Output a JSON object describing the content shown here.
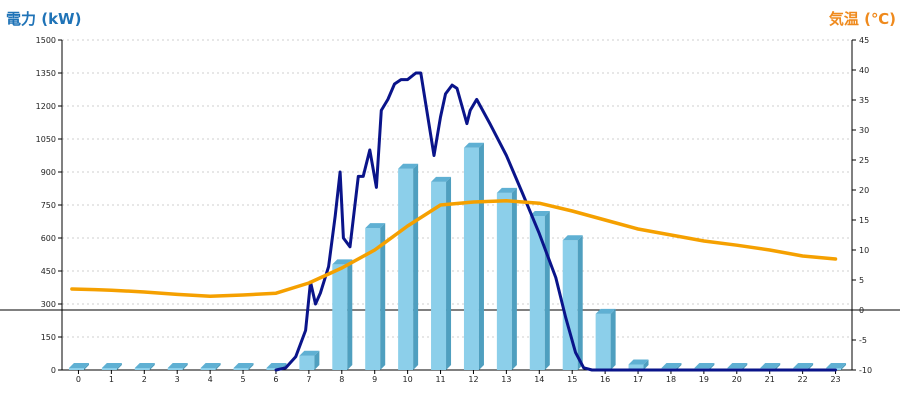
{
  "chart_data": {
    "type": "bar+line",
    "title_left": "電力 (kW)",
    "title_right": "気温 (℃)",
    "colors": {
      "title_left": "#1f73b7",
      "title_right": "#ef8a1d",
      "bar_front": "#8ccfea",
      "bar_side": "#4f9fbf",
      "bar_top": "#5fb0d3",
      "power_line": "#0a148a",
      "temp_line": "#f5a000",
      "grid": "#cfcfcf",
      "zero_line": "#000000"
    },
    "x_categories": [
      "0",
      "1",
      "2",
      "3",
      "4",
      "5",
      "6",
      "7",
      "8",
      "9",
      "10",
      "11",
      "12",
      "13",
      "14",
      "15",
      "16",
      "17",
      "18",
      "19",
      "20",
      "21",
      "22",
      "23"
    ],
    "left_axis": {
      "min": 0,
      "max": 1500,
      "ticks": [
        "0",
        "150",
        "300",
        "450",
        "600",
        "750",
        "900",
        "1050",
        "1200",
        "1350",
        "1500"
      ]
    },
    "right_axis": {
      "min": -10,
      "max": 45,
      "ticks": [
        "-10",
        "-5",
        "0",
        "5",
        "10",
        "15",
        "20",
        "25",
        "30",
        "35",
        "40",
        "45"
      ]
    },
    "grid": true,
    "bars": {
      "name": "電力 (kW)",
      "values": [
        0,
        0,
        0,
        0,
        0,
        0,
        0,
        65,
        480,
        645,
        915,
        855,
        1010,
        805,
        700,
        590,
        255,
        25,
        0,
        0,
        0,
        0,
        0,
        0
      ]
    },
    "power_line": {
      "axis": "left",
      "points": [
        [
          6.0,
          0
        ],
        [
          6.3,
          10
        ],
        [
          6.6,
          60
        ],
        [
          6.9,
          180
        ],
        [
          7.05,
          400
        ],
        [
          7.2,
          300
        ],
        [
          7.35,
          350
        ],
        [
          7.6,
          470
        ],
        [
          7.8,
          700
        ],
        [
          7.95,
          900
        ],
        [
          8.05,
          600
        ],
        [
          8.25,
          560
        ],
        [
          8.5,
          880
        ],
        [
          8.65,
          880
        ],
        [
          8.85,
          1000
        ],
        [
          9.05,
          830
        ],
        [
          9.2,
          1180
        ],
        [
          9.4,
          1230
        ],
        [
          9.6,
          1300
        ],
        [
          9.8,
          1320
        ],
        [
          10.0,
          1320
        ],
        [
          10.25,
          1350
        ],
        [
          10.4,
          1350
        ],
        [
          10.8,
          975
        ],
        [
          11.0,
          1150
        ],
        [
          11.15,
          1255
        ],
        [
          11.35,
          1295
        ],
        [
          11.5,
          1280
        ],
        [
          11.8,
          1120
        ],
        [
          11.9,
          1180
        ],
        [
          12.1,
          1230
        ],
        [
          12.5,
          1120
        ],
        [
          13.0,
          975
        ],
        [
          13.5,
          800
        ],
        [
          14.0,
          620
        ],
        [
          14.5,
          420
        ],
        [
          14.8,
          240
        ],
        [
          15.1,
          80
        ],
        [
          15.35,
          10
        ],
        [
          15.6,
          0
        ],
        [
          23.0,
          0
        ]
      ]
    },
    "temp_line": {
      "axis": "right",
      "points": [
        [
          -0.2,
          3.5
        ],
        [
          0.5,
          3.4
        ],
        [
          1.0,
          3.3
        ],
        [
          2.0,
          3.0
        ],
        [
          3.0,
          2.6
        ],
        [
          4.0,
          2.3
        ],
        [
          5.0,
          2.5
        ],
        [
          6.0,
          2.8
        ],
        [
          7.0,
          4.5
        ],
        [
          8.0,
          7.0
        ],
        [
          9.0,
          10.0
        ],
        [
          10.0,
          14.0
        ],
        [
          11.0,
          17.5
        ],
        [
          12.0,
          18.0
        ],
        [
          13.0,
          18.2
        ],
        [
          14.0,
          17.8
        ],
        [
          15.0,
          16.5
        ],
        [
          16.0,
          15.0
        ],
        [
          17.0,
          13.5
        ],
        [
          18.0,
          12.5
        ],
        [
          19.0,
          11.5
        ],
        [
          20.0,
          10.8
        ],
        [
          21.0,
          10.0
        ],
        [
          22.0,
          9.0
        ],
        [
          23.0,
          8.5
        ]
      ]
    }
  }
}
